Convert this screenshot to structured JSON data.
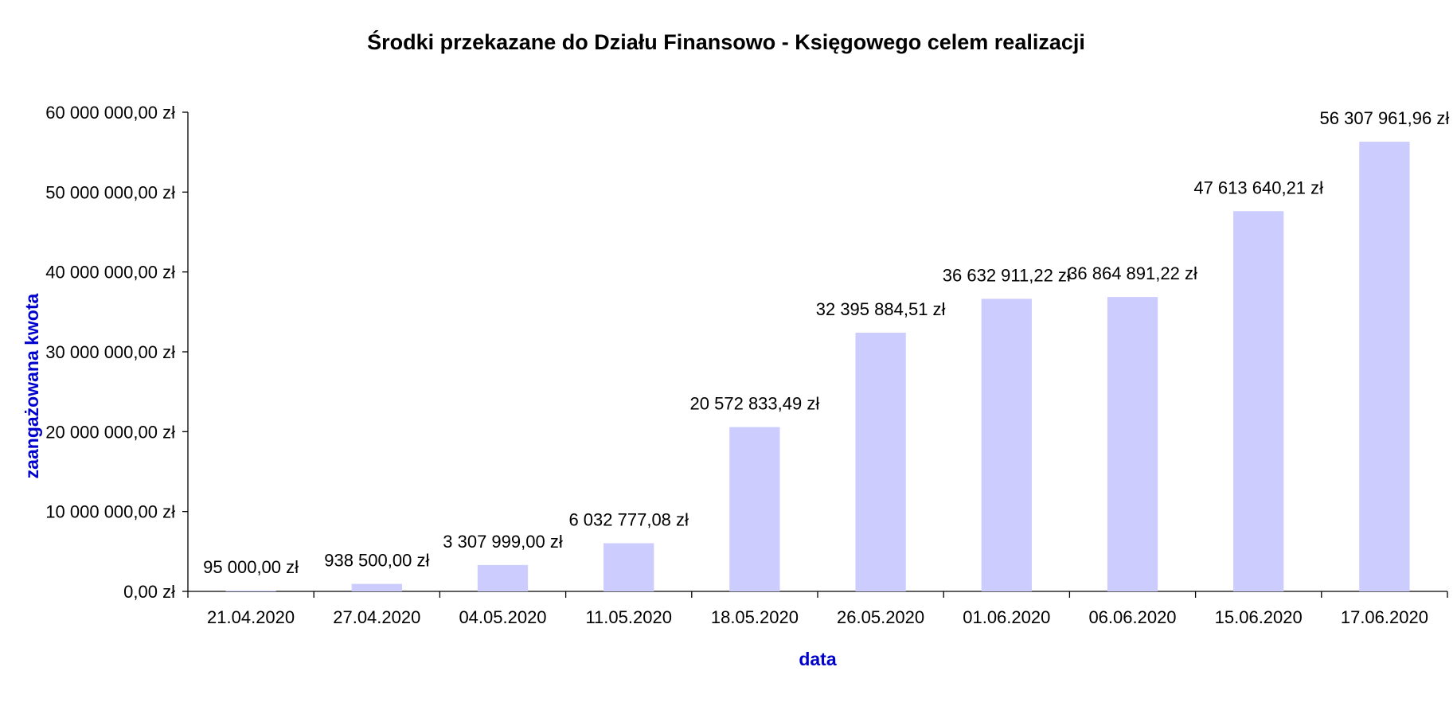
{
  "chart_data": {
    "type": "bar",
    "title": "Środki przekazane do Działu Finansowo - Księgowego celem realizacji",
    "xlabel": "data",
    "ylabel": "zaangażowana kwota",
    "categories": [
      "21.04.2020",
      "27.04.2020",
      "04.05.2020",
      "11.05.2020",
      "18.05.2020",
      "26.05.2020",
      "01.06.2020",
      "06.06.2020",
      "15.06.2020",
      "17.06.2020"
    ],
    "values": [
      95000.0,
      938500.0,
      3307999.0,
      6032777.08,
      20572833.49,
      32395884.51,
      36632911.22,
      36864891.22,
      47613640.21,
      56307961.96
    ],
    "data_labels": [
      "95 000,00 zł",
      "938 500,00 zł",
      "3 307 999,00 zł",
      "6 032 777,08 zł",
      "20 572 833,49 zł",
      "32 395 884,51 zł",
      "36 632 911,22 zł",
      "36 864 891,22 zł",
      "47 613 640,21 zł",
      "56 307 961,96 zł"
    ],
    "y_ticks": [
      {
        "value": 0,
        "label": "0,00 zł"
      },
      {
        "value": 10000000,
        "label": "10 000 000,00 zł"
      },
      {
        "value": 20000000,
        "label": "20 000 000,00 zł"
      },
      {
        "value": 30000000,
        "label": "30 000 000,00 zł"
      },
      {
        "value": 40000000,
        "label": "40 000 000,00 zł"
      },
      {
        "value": 50000000,
        "label": "50 000 000,00 zł"
      },
      {
        "value": 60000000,
        "label": "60 000 000,00 zł"
      }
    ],
    "ylim": [
      0,
      60000000
    ],
    "grid": false,
    "legend": "none",
    "colors": {
      "bar": "#ccccff",
      "axis": "#000000",
      "axis_title": "#0000cc",
      "text": "#000000"
    }
  }
}
